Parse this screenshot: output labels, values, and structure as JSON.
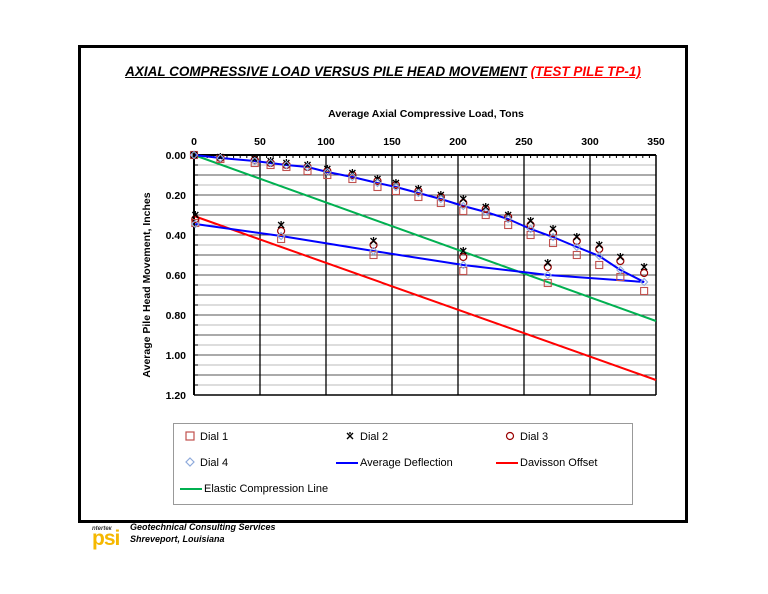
{
  "title": {
    "main": "AXIAL COMPRESSIVE LOAD VERSUS PILE HEAD MOVEMENT",
    "sub": "(TEST PILE TP-1)"
  },
  "footer": {
    "logo_small": "nterteк",
    "logo": "psi",
    "line1": "Geotechnical Consulting Services",
    "line2": "Shreveport, Louisiana"
  },
  "colors": {
    "dial1": "#c0504d",
    "dial2": "#000000",
    "dial3": "#990000",
    "dial4": "#8eaadb",
    "average": "#0000ff",
    "davisson": "#ff0000",
    "elastic": "#00b050"
  },
  "legend": {
    "dial1": "Dial 1",
    "dial2": "Dial 2",
    "dial3": "Dial 3",
    "dial4": "Dial 4",
    "average": "Average Deflection",
    "davisson": "Davisson Offset",
    "elastic": "Elastic Compression Line"
  },
  "chart_data": {
    "type": "scatter",
    "title": "AXIAL COMPRESSIVE LOAD VERSUS PILE HEAD MOVEMENT (TEST PILE TP-1)",
    "xlabel": "Average Axial Compressive Load, Tons",
    "ylabel": "Average Pile Head Movement, Inches",
    "xlim": [
      0,
      350
    ],
    "ylim": [
      0,
      1.2
    ],
    "x_axis_position": "top",
    "y_inverted": true,
    "xticks": [
      0,
      50,
      100,
      150,
      200,
      250,
      300,
      350
    ],
    "yticks": [
      "0.00",
      "0.20",
      "0.40",
      "0.60",
      "0.80",
      "1.00",
      "1.20"
    ],
    "grid": true,
    "legend_position": "bottom",
    "series": [
      {
        "name": "Average Deflection",
        "kind": "line",
        "x": [
          0,
          20,
          46,
          58,
          70,
          86,
          101,
          120,
          139,
          153,
          170,
          187,
          204,
          221,
          238,
          255,
          272,
          290,
          307,
          323,
          341,
          268,
          204,
          136,
          66,
          1
        ],
        "y": [
          0.0,
          0.015,
          0.03,
          0.04,
          0.05,
          0.06,
          0.085,
          0.11,
          0.14,
          0.16,
          0.19,
          0.22,
          0.255,
          0.285,
          0.32,
          0.37,
          0.41,
          0.46,
          0.505,
          0.575,
          0.635,
          0.6,
          0.55,
          0.48,
          0.405,
          0.345
        ]
      },
      {
        "name": "Dial 1",
        "kind": "marker",
        "x": [
          0,
          20,
          46,
          58,
          70,
          86,
          101,
          120,
          139,
          153,
          170,
          187,
          204,
          221,
          238,
          255,
          272,
          290,
          307,
          323,
          341,
          268,
          204,
          136,
          66,
          1
        ],
        "y": [
          0.0,
          0.02,
          0.04,
          0.05,
          0.06,
          0.08,
          0.1,
          0.12,
          0.16,
          0.18,
          0.21,
          0.24,
          0.28,
          0.3,
          0.35,
          0.4,
          0.44,
          0.5,
          0.55,
          0.61,
          0.68,
          0.64,
          0.58,
          0.5,
          0.42,
          0.34
        ]
      },
      {
        "name": "Dial 2",
        "kind": "marker",
        "x": [
          0,
          20,
          46,
          58,
          70,
          86,
          101,
          120,
          139,
          153,
          170,
          187,
          204,
          221,
          238,
          255,
          272,
          290,
          307,
          323,
          341,
          268,
          204,
          136,
          66,
          1
        ],
        "y": [
          0.0,
          0.01,
          0.02,
          0.03,
          0.04,
          0.05,
          0.07,
          0.09,
          0.12,
          0.14,
          0.17,
          0.2,
          0.22,
          0.26,
          0.3,
          0.33,
          0.37,
          0.41,
          0.45,
          0.51,
          0.56,
          0.54,
          0.48,
          0.43,
          0.35,
          0.3
        ]
      },
      {
        "name": "Dial 3",
        "kind": "marker",
        "x": [
          0,
          20,
          46,
          58,
          70,
          86,
          101,
          120,
          139,
          153,
          170,
          187,
          204,
          221,
          238,
          255,
          272,
          290,
          307,
          323,
          341,
          268,
          204,
          136,
          66,
          1
        ],
        "y": [
          0.0,
          0.015,
          0.025,
          0.04,
          0.05,
          0.06,
          0.08,
          0.1,
          0.13,
          0.15,
          0.18,
          0.21,
          0.24,
          0.27,
          0.31,
          0.35,
          0.39,
          0.43,
          0.47,
          0.53,
          0.59,
          0.56,
          0.51,
          0.45,
          0.38,
          0.32
        ]
      },
      {
        "name": "Dial 4",
        "kind": "marker",
        "x": [
          0,
          20,
          46,
          58,
          70,
          86,
          101,
          120,
          139,
          153,
          170,
          187,
          204,
          221,
          238,
          255,
          272,
          290,
          307,
          323,
          341,
          268,
          204,
          136,
          66,
          1
        ],
        "y": [
          0.0,
          0.015,
          0.03,
          0.04,
          0.05,
          0.06,
          0.085,
          0.11,
          0.14,
          0.16,
          0.19,
          0.22,
          0.255,
          0.285,
          0.32,
          0.37,
          0.41,
          0.46,
          0.505,
          0.575,
          0.635,
          0.6,
          0.55,
          0.48,
          0.405,
          0.345
        ]
      },
      {
        "name": "Davisson Offset",
        "kind": "line",
        "x": [
          0,
          350
        ],
        "y": [
          0.305,
          1.125
        ]
      },
      {
        "name": "Elastic Compression Line",
        "kind": "line",
        "x": [
          0,
          350
        ],
        "y": [
          0.0,
          0.83
        ]
      }
    ]
  }
}
